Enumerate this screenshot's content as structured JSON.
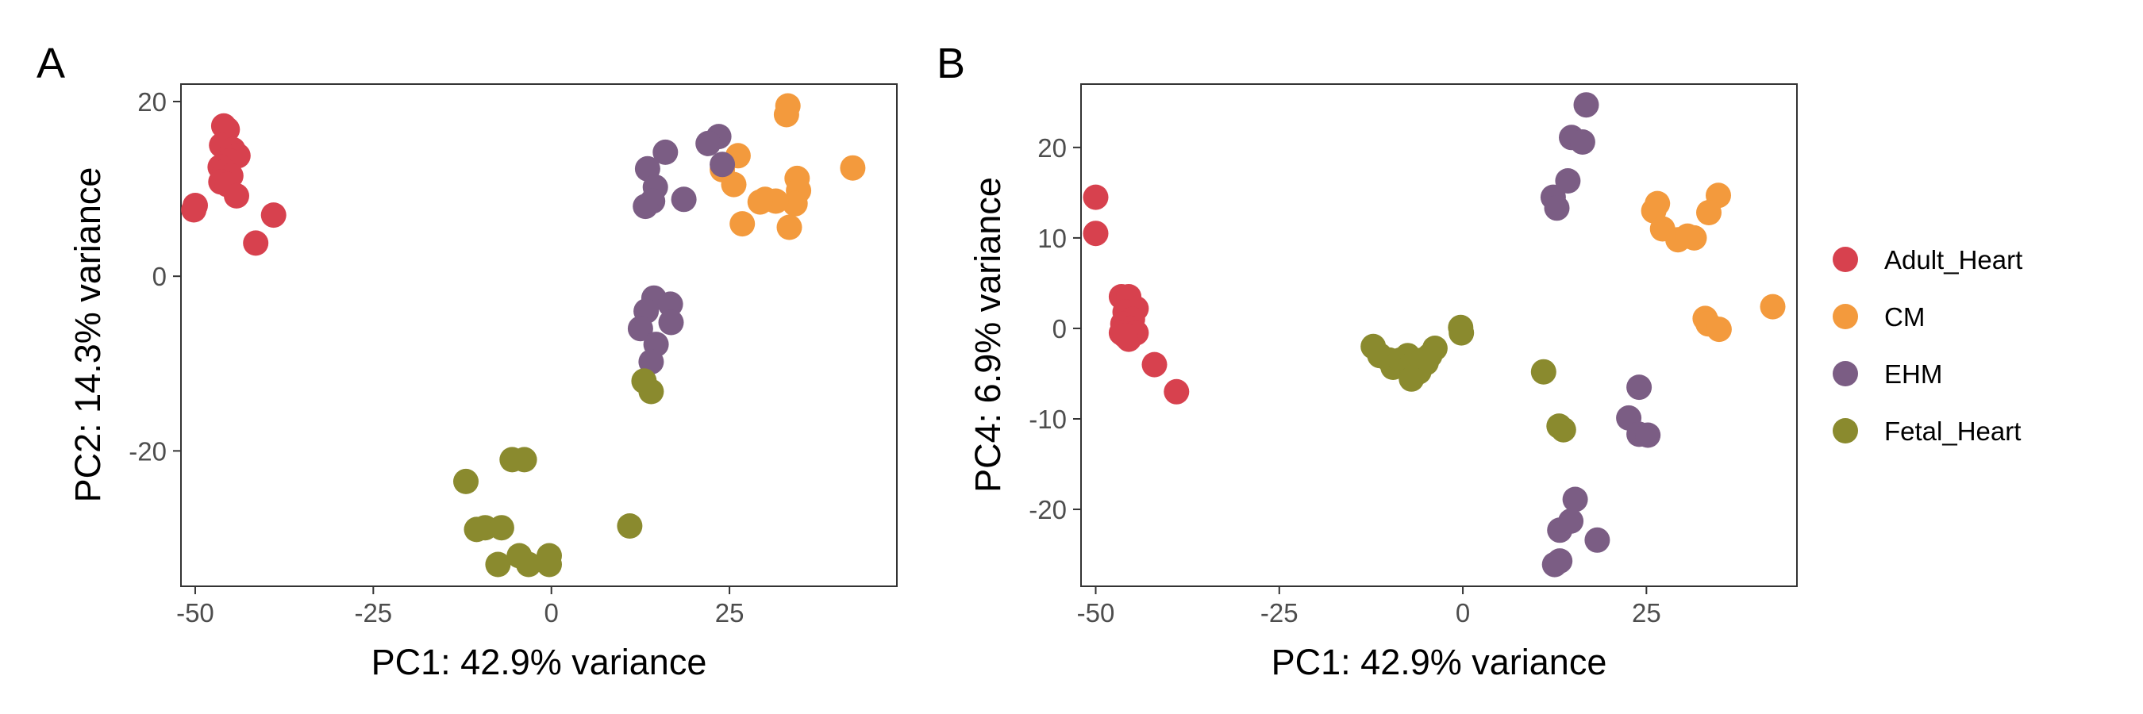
{
  "chart_data": [
    {
      "type": "scatter",
      "panel_label": "A",
      "xlabel": "PC1: 42.9% variance",
      "ylabel": "PC2: 14.3% variance",
      "xlim": [
        -52,
        48.5
      ],
      "ylim": [
        -35.5,
        22
      ],
      "xticks": [
        -50,
        -25,
        0,
        25
      ],
      "xtick_labels": [
        "-50",
        "-25",
        "0",
        "25"
      ],
      "yticks": [
        -20,
        0,
        20
      ],
      "ytick_labels": [
        "-20",
        "0",
        "20"
      ],
      "grid": false,
      "series": [
        {
          "name": "Adult_Heart",
          "points": [
            [
              -46,
              17.2
            ],
            [
              -45.5,
              16.8
            ],
            [
              -46.3,
              15
            ],
            [
              -44.7,
              14.5
            ],
            [
              -44,
              13.8
            ],
            [
              -45.2,
              13.2
            ],
            [
              -46.5,
              12.5
            ],
            [
              -45.8,
              12
            ],
            [
              -45,
              11.5
            ],
            [
              -46.4,
              10.8
            ],
            [
              -45.5,
              10.5
            ],
            [
              -44.2,
              9.2
            ],
            [
              -50,
              8.1
            ],
            [
              -50.2,
              7.6
            ],
            [
              -39,
              7
            ],
            [
              -41.5,
              3.8
            ]
          ]
        },
        {
          "name": "CM",
          "points": [
            [
              33.2,
              19.5
            ],
            [
              33,
              18.5
            ],
            [
              26.2,
              13.8
            ],
            [
              24,
              12.2
            ],
            [
              42.3,
              12.4
            ],
            [
              34.5,
              11.2
            ],
            [
              34.7,
              9.8
            ],
            [
              34.2,
              8.3
            ],
            [
              30,
              8.8
            ],
            [
              31.5,
              8.6
            ],
            [
              29.3,
              8.5
            ],
            [
              25.6,
              10.5
            ],
            [
              26.8,
              6
            ],
            [
              33.4,
              5.6
            ]
          ]
        },
        {
          "name": "EHM",
          "points": [
            [
              23.5,
              16
            ],
            [
              22,
              15.2
            ],
            [
              16,
              14.2
            ],
            [
              24,
              12.8
            ],
            [
              13.5,
              12.3
            ],
            [
              14.6,
              10.2
            ],
            [
              18.6,
              8.8
            ],
            [
              14.2,
              8.6
            ],
            [
              13.2,
              8
            ],
            [
              14.4,
              -2.5
            ],
            [
              13.3,
              -4
            ],
            [
              16.7,
              -3.2
            ],
            [
              16.8,
              -5.3
            ],
            [
              12.5,
              -6
            ],
            [
              14.7,
              -7.8
            ],
            [
              14,
              -9.8
            ]
          ]
        },
        {
          "name": "Fetal_Heart",
          "points": [
            [
              -12,
              -23.5
            ],
            [
              -5.5,
              -21
            ],
            [
              -3.8,
              -21
            ],
            [
              -10.5,
              -29
            ],
            [
              -9.3,
              -28.8
            ],
            [
              -7,
              -28.8
            ],
            [
              11,
              -28.6
            ],
            [
              -4.5,
              -32
            ],
            [
              -0.3,
              -32
            ],
            [
              -3.2,
              -33
            ],
            [
              -7.5,
              -33
            ],
            [
              -0.3,
              -33
            ],
            [
              13,
              -12
            ],
            [
              14,
              -13.2
            ]
          ]
        }
      ]
    },
    {
      "type": "scatter",
      "panel_label": "B",
      "xlabel": "PC1: 42.9% variance",
      "ylabel": "PC4: 6.9% variance",
      "xlim": [
        -52,
        45.5
      ],
      "ylim": [
        -28.5,
        27
      ],
      "xticks": [
        -50,
        -25,
        0,
        25
      ],
      "xtick_labels": [
        "-50",
        "-25",
        "0",
        "25"
      ],
      "yticks": [
        -20,
        -10,
        0,
        10,
        20
      ],
      "ytick_labels": [
        "-20",
        "-10",
        "0",
        "10",
        "20"
      ],
      "grid": false,
      "series": [
        {
          "name": "Adult_Heart",
          "points": [
            [
              -50,
              14.5
            ],
            [
              -50,
              10.5
            ],
            [
              -46.5,
              3.5
            ],
            [
              -45.5,
              3.5
            ],
            [
              -44.5,
              2.2
            ],
            [
              -46,
              1.8
            ],
            [
              -45,
              1
            ],
            [
              -46.3,
              0.5
            ],
            [
              -45.3,
              0
            ],
            [
              -46.5,
              -0.5
            ],
            [
              -44.5,
              -0.5
            ],
            [
              -45.5,
              -1.2
            ],
            [
              -46,
              -0.8
            ],
            [
              -42,
              -4
            ],
            [
              -39,
              -7
            ]
          ]
        },
        {
          "name": "CM",
          "points": [
            [
              34.8,
              14.7
            ],
            [
              26.5,
              13.8
            ],
            [
              26,
              13
            ],
            [
              33.5,
              12.8
            ],
            [
              27.2,
              11
            ],
            [
              31.5,
              10
            ],
            [
              29.3,
              9.8
            ],
            [
              30.6,
              10.2
            ],
            [
              42.2,
              2.4
            ],
            [
              33,
              1.1
            ],
            [
              33.4,
              0.5
            ],
            [
              34.9,
              -0.1
            ]
          ]
        },
        {
          "name": "EHM",
          "points": [
            [
              16.8,
              24.7
            ],
            [
              14.8,
              21.1
            ],
            [
              16.3,
              20.6
            ],
            [
              14.3,
              16.3
            ],
            [
              12.3,
              14.5
            ],
            [
              12.8,
              13.3
            ],
            [
              24,
              -6.5
            ],
            [
              22.6,
              -9.9
            ],
            [
              24,
              -11.7
            ],
            [
              25.2,
              -11.8
            ],
            [
              15.3,
              -18.9
            ],
            [
              18.3,
              -23.4
            ],
            [
              13.2,
              -22.3
            ],
            [
              14.7,
              -21.3
            ],
            [
              12.5,
              -26.1
            ],
            [
              13.2,
              -25.7
            ]
          ]
        },
        {
          "name": "Fetal_Heart",
          "points": [
            [
              -12.2,
              -2
            ],
            [
              -11.3,
              -3
            ],
            [
              -10,
              -3.5
            ],
            [
              -9.5,
              -4.3
            ],
            [
              -8.5,
              -3.5
            ],
            [
              -7.5,
              -3
            ],
            [
              -7,
              -4
            ],
            [
              -6,
              -4.8
            ],
            [
              -5.5,
              -3.5
            ],
            [
              -4.5,
              -3
            ],
            [
              -3.8,
              -2.2
            ],
            [
              -5,
              -3.8
            ],
            [
              -7,
              -5.6
            ],
            [
              -0.3,
              0.1
            ],
            [
              -0.2,
              -0.5
            ],
            [
              11,
              -4.8
            ],
            [
              13.1,
              -10.8
            ],
            [
              13.7,
              -11.2
            ]
          ]
        }
      ]
    }
  ],
  "legend": {
    "placement": "right",
    "entries": [
      {
        "label": "Adult_Heart",
        "color": "#D7414E"
      },
      {
        "label": "CM",
        "color": "#F39A3D"
      },
      {
        "label": "EHM",
        "color": "#7B5D84"
      },
      {
        "label": "Fetal_Heart",
        "color": "#8A8A2E"
      }
    ]
  }
}
